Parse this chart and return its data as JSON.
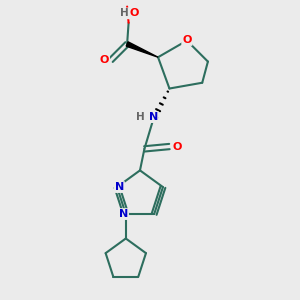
{
  "bg_color": "#ebebeb",
  "bond_color": "#2d6e5e",
  "atom_colors": {
    "O": "#ff0000",
    "N": "#0000cc",
    "H": "#666666",
    "C": "#2d6e5e"
  },
  "line_width": 1.5,
  "fig_size": [
    3.0,
    3.0
  ],
  "dpi": 100
}
